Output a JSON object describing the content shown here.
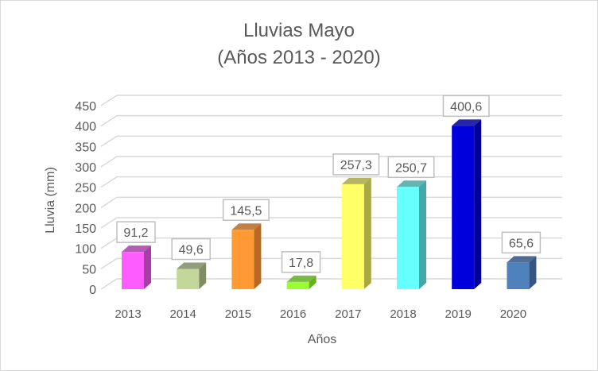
{
  "chart_data": {
    "type": "bar",
    "title": "Lluvias Mayo",
    "subtitle": "(Años 2013 - 2020)",
    "xlabel": "Años",
    "ylabel": "Lluvia (mm)",
    "ylim": [
      0,
      450
    ],
    "yticks": [
      "0",
      "50",
      "100",
      "150",
      "200",
      "250",
      "300",
      "350",
      "400",
      "450"
    ],
    "categories": [
      "2013",
      "2014",
      "2015",
      "2016",
      "2017",
      "2018",
      "2019",
      "2020"
    ],
    "values": [
      91.2,
      49.6,
      145.5,
      17.8,
      257.3,
      250.7,
      400.6,
      65.6
    ],
    "data_labels": [
      "91,2",
      "49,6",
      "145,5",
      "17,8",
      "257,3",
      "250,7",
      "400,6",
      "65,6"
    ],
    "colors": [
      "#FF5CFF",
      "#C4D79B",
      "#FF9933",
      "#99FF33",
      "#FFFF66",
      "#66FFFF",
      "#0000DD",
      "#4F81BD"
    ],
    "side_colors": [
      "#A83DA8",
      "#7F8C65",
      "#B86A22",
      "#66B022",
      "#A8A844",
      "#44A8A8",
      "#000099",
      "#345680"
    ],
    "grid": true,
    "legend": "none"
  }
}
